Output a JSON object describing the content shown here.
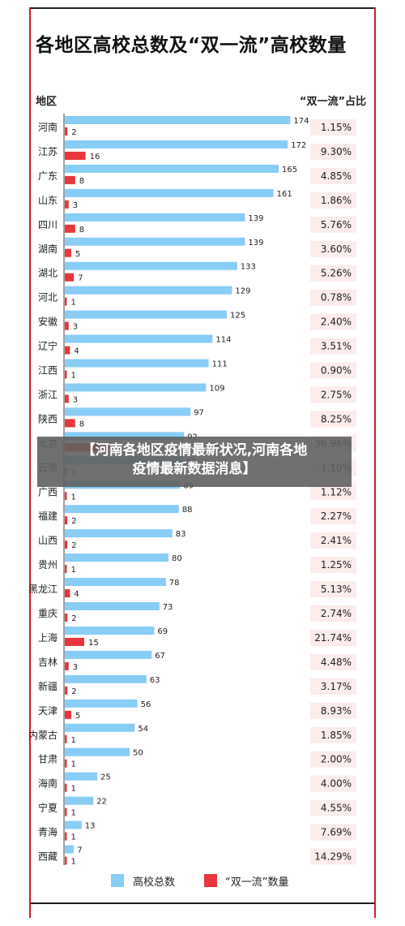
{
  "title": "各地区高校总数及“双一流”高校数量",
  "header_left": "地区",
  "header_right": "“双一流”占比",
  "overlay_text_line1": "【河南各地区疫情最新状况,河南各地",
  "overlay_text_line2": "疫情最新数据消息】",
  "colors": {
    "total": "#87cdf5",
    "double": "#e8363c",
    "pct_bg": "#fdecec",
    "frame": "#d02020"
  },
  "chart_data": {
    "type": "bar",
    "orientation": "horizontal",
    "categories": [
      "河南",
      "江苏",
      "广东",
      "山东",
      "四川",
      "湖南",
      "湖北",
      "河北",
      "安徽",
      "辽宁",
      "江西",
      "浙江",
      "陕西",
      "北京",
      "云南",
      "广西",
      "福建",
      "山西",
      "贵州",
      "黑龙江",
      "重庆",
      "上海",
      "吉林",
      "新疆",
      "天津",
      "内蒙古",
      "甘肃",
      "海南",
      "宁夏",
      "青海",
      "西藏"
    ],
    "series": [
      {
        "name": "高校总数",
        "values": [
          174,
          172,
          165,
          161,
          139,
          139,
          133,
          129,
          125,
          114,
          111,
          109,
          97,
          92,
          91,
          89,
          88,
          83,
          80,
          78,
          73,
          69,
          67,
          63,
          56,
          54,
          50,
          25,
          22,
          13,
          7
        ]
      },
      {
        "name": "“双一流”数量",
        "values": [
          2,
          16,
          8,
          3,
          8,
          5,
          7,
          1,
          3,
          4,
          1,
          3,
          8,
          34,
          1,
          1,
          2,
          2,
          1,
          4,
          2,
          15,
          3,
          2,
          5,
          1,
          1,
          1,
          1,
          1,
          1
        ]
      }
    ],
    "percentages": [
      "1.15%",
      "9.30%",
      "4.85%",
      "1.86%",
      "5.76%",
      "3.60%",
      "5.26%",
      "0.78%",
      "2.40%",
      "3.51%",
      "0.90%",
      "2.75%",
      "8.25%",
      "36.96%",
      "1.10%",
      "1.12%",
      "2.27%",
      "2.41%",
      "1.25%",
      "5.13%",
      "2.74%",
      "21.74%",
      "4.48%",
      "3.17%",
      "8.93%",
      "1.85%",
      "2.00%",
      "4.00%",
      "4.55%",
      "7.69%",
      "14.29%"
    ],
    "legend": [
      "高校总数",
      "“双一流”数量"
    ],
    "legend_position": "bottom"
  }
}
